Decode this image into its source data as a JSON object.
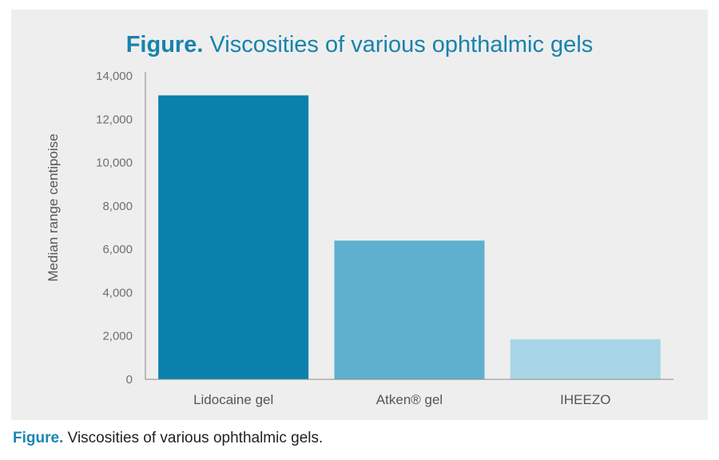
{
  "title": {
    "lead": "Figure.",
    "text": "Viscosities of various ophthalmic gels"
  },
  "caption": {
    "lead": "Figure.",
    "text": "Viscosities of various ophthalmic gels."
  },
  "chart_data": {
    "type": "bar",
    "title": "Figure. Viscosities of various ophthalmic gels",
    "xlabel": "",
    "ylabel": "Median range centipoise",
    "ylim": [
      0,
      14000
    ],
    "yticks": [
      0,
      2000,
      4000,
      6000,
      8000,
      10000,
      12000,
      14000
    ],
    "ytick_labels": [
      "0",
      "2,000",
      "4,000",
      "6,000",
      "8,000",
      "10,000",
      "12,000",
      "14,000"
    ],
    "categories": [
      "Lidocaine gel",
      "Atken® gel",
      "IHEEZO"
    ],
    "values": [
      13100,
      6400,
      1850
    ],
    "colors": [
      "#0a81ad",
      "#5eb0cf",
      "#a8d5e6"
    ],
    "grid": false,
    "legend": "none"
  }
}
